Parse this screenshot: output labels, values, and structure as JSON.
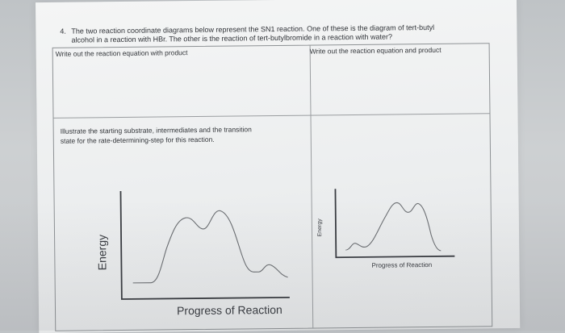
{
  "question": {
    "number": "4.",
    "line1": "The two reaction coordinate diagrams below represent the SN1 reaction. One of these is the diagram of tert-butyl",
    "line2": "alcohol in a reaction with HBr. The other is the reaction of tert-butylbromide in a reaction with water?"
  },
  "table": {
    "left_header": "Write out the reaction equation with product",
    "right_header": "Write out the reaction equation and product",
    "illustrate_line1": "Illustrate the starting substrate, intermediates and the transition",
    "illustrate_line2": "state for the rate-determining-step for this reaction."
  },
  "diagram_left": {
    "y_label": "Energy",
    "x_label": "Progress of Reaction"
  },
  "diagram_right": {
    "y_label": "Energy",
    "x_label": "Progress of Reaction"
  }
}
